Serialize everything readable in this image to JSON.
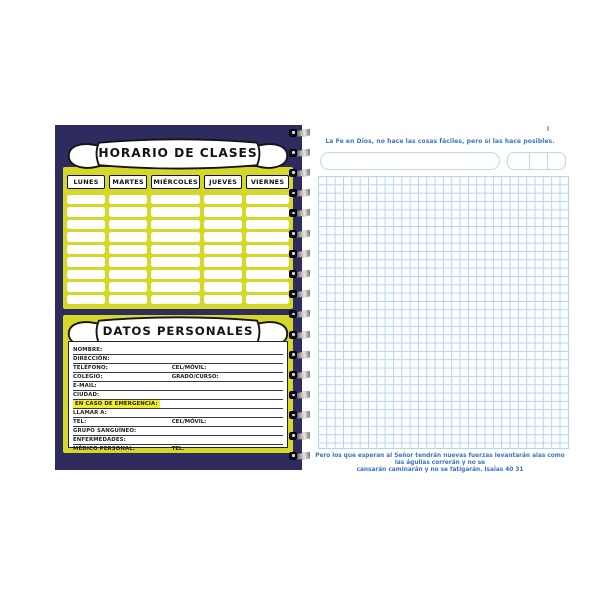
{
  "left": {
    "schedule": {
      "title": "HORARIO DE CLASES",
      "days": [
        "LUNES",
        "MARTES",
        "MIÉRCOLES",
        "JUEVES",
        "VIERNES"
      ],
      "blank_rows": 9,
      "columns": 5
    },
    "personal": {
      "title": "DATOS PERSONALES",
      "fields": [
        {
          "label": "NOMBRE:"
        },
        {
          "label": "DIRECCIÓN:"
        },
        {
          "label": "TELÉFONO:",
          "label2": "CEL/MÓVIL:"
        },
        {
          "label": "COLEGIO:",
          "label2": "GRADO/CURSO:"
        },
        {
          "label": "E-MAIL:"
        },
        {
          "label": "CIUDAD:"
        },
        {
          "label": "EN CASO DE EMERGENCIA:",
          "highlight": true
        },
        {
          "label": "LLAMAR A:"
        },
        {
          "label": "TEL:",
          "label2": "CEL/MÓVIL:"
        },
        {
          "label": "GRUPO SANGUÍNEO:"
        },
        {
          "label": "ENFERMEDADES:"
        },
        {
          "label": "MÉDICO PERSONAL:",
          "label2": "TEL:",
          "no_line": true
        }
      ]
    }
  },
  "right": {
    "quote_top": "La Fe en Dios, no hace las cosas fáciles, pero sí las hace posibles.",
    "quote_bottom_line1": "Pero los que esperan al Señor tendrán nuevas fuerzas levantarán alas como las águilas correrán y no se",
    "quote_bottom_line2": "cansarán caminarán y no se fatigarán. Isaías 40 31",
    "date_box_cells": 3
  },
  "colors": {
    "cover_navy": "#2e2b5f",
    "schedule_yellow": "#d5d729",
    "highlight_yellow": "#f2ee2b",
    "grid_blue": "#aed7f3",
    "quote_blue": "#3a72c7"
  },
  "spiral_coils": 17
}
